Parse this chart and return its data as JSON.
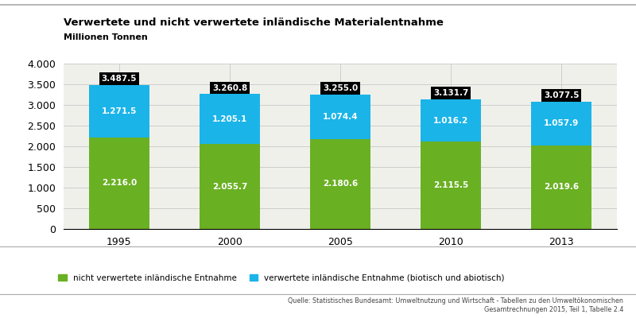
{
  "title": "Verwertete und nicht verwertete inländische Materialentnahme",
  "ylabel": "Millionen Tonnen",
  "years": [
    1995,
    2000,
    2005,
    2010,
    2013
  ],
  "green_values": [
    2216.0,
    2055.7,
    2180.6,
    2115.5,
    2019.6
  ],
  "blue_values": [
    1271.5,
    1205.1,
    1074.4,
    1016.2,
    1057.9
  ],
  "totals": [
    3487.5,
    3260.8,
    3255.0,
    3131.7,
    3077.5
  ],
  "green_color": "#6ab023",
  "blue_color": "#1ab4e8",
  "bar_width": 0.55,
  "ylim": [
    0,
    4000
  ],
  "yticks": [
    0,
    500,
    1000,
    1500,
    2000,
    2500,
    3000,
    3500,
    4000
  ],
  "legend_green": "nicht verwertete inländische Entnahme",
  "legend_blue": "verwertete inländische Entnahme (biotisch und abiotisch)",
  "source_line1": "Quelle: Statistisches Bundesamt: Umweltnutzung und Wirtschaft - Tabellen zu den Umweltökonomischen",
  "source_line2": "Gesamtrechnungen 2015, Teil 1, Tabelle 2.4",
  "background_color": "#f0f0eb",
  "grid_color": "#cccccc",
  "separator_color": "#aaaaaa"
}
